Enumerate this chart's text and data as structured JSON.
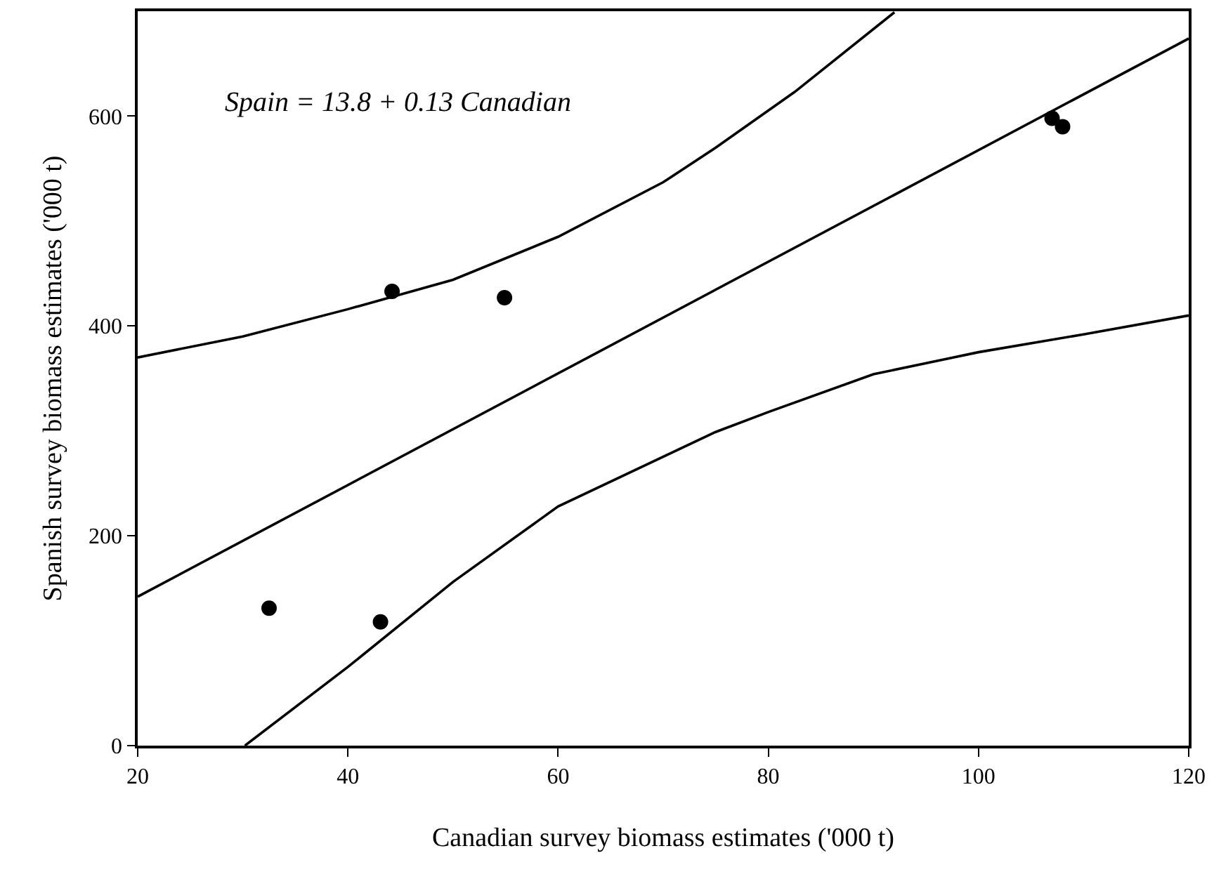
{
  "chart_data": {
    "type": "scatter",
    "xlabel": "Canadian survey biomass estimates ('000 t)",
    "ylabel": "Spanish survey biomass estimates ('000 t)",
    "xlim": [
      20,
      120
    ],
    "xticks": [
      20,
      40,
      60,
      80,
      100,
      120
    ],
    "ylim": [
      0,
      700
    ],
    "yticks": [
      0,
      200,
      400,
      600
    ],
    "grid": false,
    "marker": "circle",
    "annotations": [
      "Spain = 13.8 + 0.13 Canadian"
    ],
    "series": [
      {
        "color": "#000000",
        "x": [
          32.5,
          43.1,
          44.2,
          54.9,
          107,
          108
        ],
        "values": [
          131,
          118,
          433,
          427,
          598,
          590
        ]
      },
      {
        "type": "line",
        "color": "#000000",
        "marker": "none",
        "x": [
          20,
          120
        ],
        "values": [
          142,
          674
        ]
      },
      {
        "type": "line",
        "color": "#000000",
        "marker": "none",
        "x": [
          20,
          30,
          40,
          50,
          60,
          70,
          75,
          82.5,
          92
        ],
        "values": [
          370,
          390,
          416,
          444,
          485,
          537,
          570,
          623,
          699
        ]
      },
      {
        "type": "line",
        "color": "#000000",
        "marker": "none",
        "x": [
          30.2,
          40,
          50,
          60,
          75,
          80,
          90,
          100,
          110,
          120
        ],
        "values": [
          0,
          75,
          156,
          228,
          299,
          318,
          354,
          375,
          392,
          410
        ]
      }
    ]
  }
}
